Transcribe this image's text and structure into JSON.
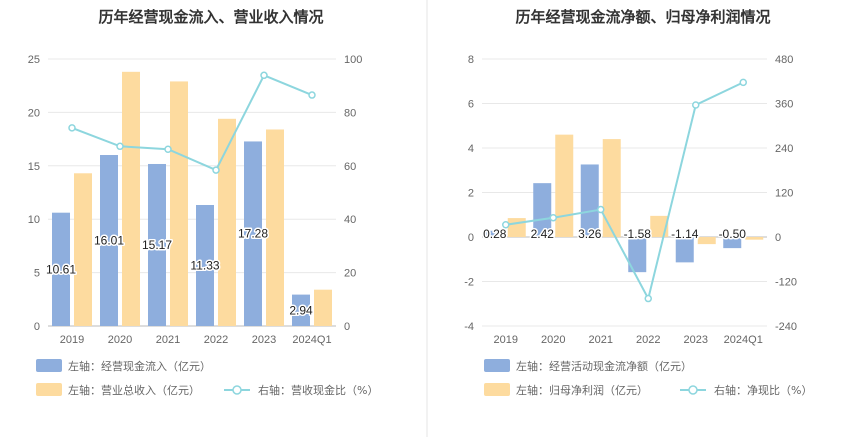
{
  "chart_data": [
    {
      "type": "bar",
      "title": "历年经营现金流入、营业收入情况",
      "categories": [
        "2019",
        "2020",
        "2021",
        "2022",
        "2023",
        "2024Q1"
      ],
      "left_axis": {
        "ylim": [
          0,
          25
        ],
        "ticks": [
          "0",
          "5",
          "10",
          "15",
          "20",
          "25"
        ]
      },
      "right_axis": {
        "ylim": [
          0,
          100
        ],
        "ticks": [
          "0",
          "20",
          "40",
          "60",
          "80",
          "100"
        ]
      },
      "series": [
        {
          "name": "左轴：经营现金流入（亿元）",
          "type": "bar",
          "axis": "left",
          "color": "#8eaedd",
          "values": [
            10.61,
            16.01,
            15.17,
            11.33,
            17.28,
            2.94
          ],
          "labels": [
            "10.61",
            "16.01",
            "15.17",
            "11.33",
            "17.28",
            "2.94"
          ]
        },
        {
          "name": "左轴：营业总收入（亿元）",
          "type": "bar",
          "axis": "left",
          "color": "#fddb9f",
          "values": [
            14.3,
            23.8,
            22.9,
            19.4,
            18.4,
            3.4
          ]
        },
        {
          "name": "右轴：营收现金比（%）",
          "type": "line",
          "axis": "right",
          "color": "#8dd6de",
          "values": [
            74.2,
            67.3,
            66.2,
            58.4,
            93.9,
            86.5
          ]
        }
      ],
      "grid": true,
      "legend_position": "bottom-left"
    },
    {
      "type": "bar",
      "title": "历年经营现金流净额、归母净利润情况",
      "categories": [
        "2019",
        "2020",
        "2021",
        "2022",
        "2023",
        "2024Q1"
      ],
      "left_axis": {
        "ylim": [
          -4,
          8
        ],
        "ticks": [
          "-4",
          "-2",
          "0",
          "2",
          "4",
          "6",
          "8"
        ]
      },
      "right_axis": {
        "ylim": [
          -240,
          480
        ],
        "ticks": [
          "-240",
          "-120",
          "0",
          "120",
          "240",
          "360",
          "480"
        ]
      },
      "series": [
        {
          "name": "左轴：经营活动现金流净额（亿元）",
          "type": "bar",
          "axis": "left",
          "color": "#8eaedd",
          "values": [
            0.28,
            2.42,
            3.26,
            -1.58,
            -1.14,
            -0.5
          ],
          "labels": [
            "0.28",
            "2.42",
            "3.26",
            "-1.58",
            "-1.14",
            "-0.50"
          ]
        },
        {
          "name": "左轴：归母净利润（亿元）",
          "type": "bar",
          "axis": "left",
          "color": "#fddb9f",
          "values": [
            0.85,
            4.6,
            4.4,
            0.95,
            -0.32,
            -0.12
          ]
        },
        {
          "name": "右轴：净现比（%）",
          "type": "line",
          "axis": "right",
          "color": "#8dd6de",
          "values": [
            33,
            52,
            74,
            -166,
            356,
            417
          ]
        }
      ],
      "grid": true,
      "legend_position": "bottom-left"
    }
  ]
}
